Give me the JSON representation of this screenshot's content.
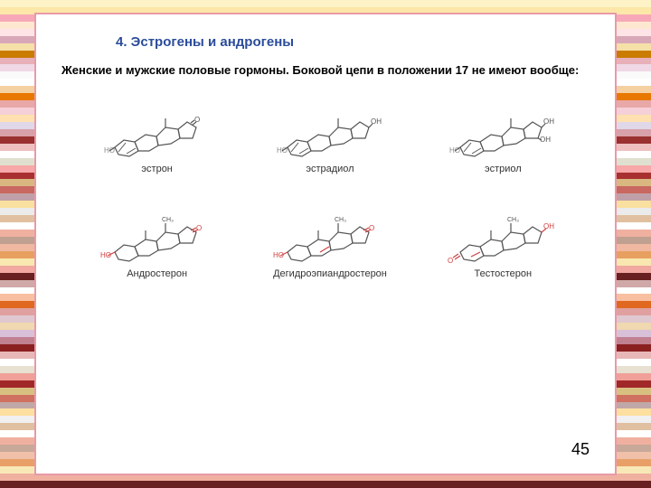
{
  "stripe_colors": [
    "#fef3c7",
    "#fce7a8",
    "#f7a8b8",
    "#fde7d0",
    "#fee4e6",
    "#d9a8b8",
    "#f5e0a8",
    "#c97c00",
    "#e8b0b8",
    "#f0d8e6",
    "#fafafa",
    "#ffffff",
    "#f5d0a0",
    "#e87800",
    "#e8a8a8",
    "#f5d0d8",
    "#ffe0b0",
    "#e0d8e8",
    "#d8a0a8",
    "#9a3030",
    "#f0c0c0",
    "#ffffff",
    "#e0e0d0",
    "#f8a8a8",
    "#a83030",
    "#d8b880",
    "#c86860",
    "#c0a0a8",
    "#fae0a0",
    "#ebebeb",
    "#e0c0a0",
    "#ffffff",
    "#f0b0a0",
    "#c0a090",
    "#f0b8a0",
    "#e8a060",
    "#f8e8b0",
    "#f0a8a0",
    "#682020",
    "#d0a8a8",
    "#ffffff",
    "#f8c0a0",
    "#e06820",
    "#e0a0a0",
    "#e0c8d0",
    "#f0d8b0",
    "#d8c0d8",
    "#c08090",
    "#8a2020",
    "#e8b8b8",
    "#ffffff",
    "#e8e0d0",
    "#f0a098",
    "#a02828",
    "#d8c080",
    "#d07060",
    "#c0a8a8",
    "#fde0a0",
    "#f0f0f0",
    "#e0c0a0",
    "#ffffff",
    "#f0b0a0",
    "#c8a898",
    "#f0c0a8",
    "#e8a068",
    "#f8e8b8",
    "#f0b0a0",
    "#682020"
  ],
  "title": "4. Эстрогены и андрогены",
  "body": "Женские и мужские половые гормоны. Боковой цепи в положении 17 не имеют вообще:",
  "row1": [
    {
      "label": "эстрон",
      "variant": "estrone"
    },
    {
      "label": "эстрадиол",
      "variant": "estradiol"
    },
    {
      "label": "эстриол",
      "variant": "estriol"
    }
  ],
  "row2": [
    {
      "label": "Андростерон",
      "variant": "androsterone"
    },
    {
      "label": "Дегидроэпиандростерон",
      "variant": "dhea"
    },
    {
      "label": "Тестостерон",
      "variant": "testosterone"
    }
  ],
  "page_number": "45",
  "colors": {
    "line": "#555555",
    "accent": "#d04040",
    "ho_text": "#888888"
  }
}
